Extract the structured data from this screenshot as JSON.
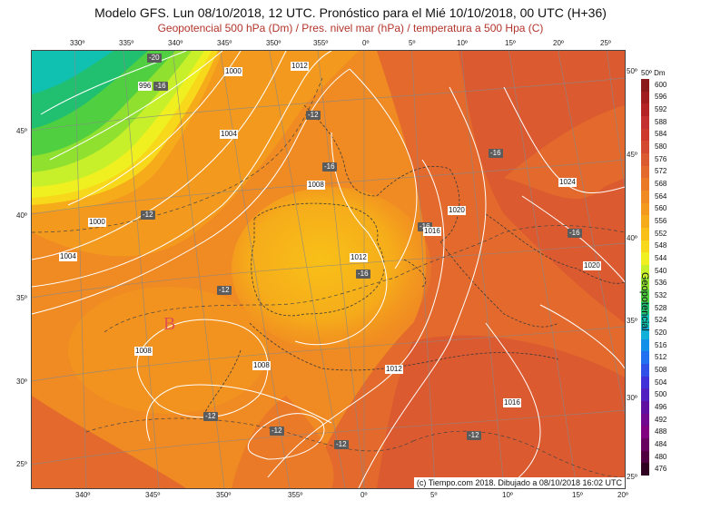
{
  "header": {
    "title": "Modelo GFS. Lun 08/10/2018, 12 UTC. Pronóstico para el Mié 10/10/2018, 00 UTC (H+36)",
    "subtitle": "Geopotencial 500 hPa (Dm) / Pres. nivel mar (hPa) / temperatura a 500 Hpa (C)"
  },
  "axes": {
    "lon_top": [
      "330º",
      "335º",
      "340º",
      "345º",
      "350º",
      "355º",
      "0º",
      "5º",
      "10º",
      "15º",
      "20º",
      "25º"
    ],
    "lon_bottom": [
      "340º",
      "345º",
      "350º",
      "355º",
      "0º",
      "5º",
      "10º",
      "15º",
      "20º"
    ],
    "lat_left": [
      "45º",
      "40º",
      "35º",
      "30º",
      "25º"
    ],
    "lat_right": [
      "50º",
      "45º",
      "40º",
      "35º",
      "30º",
      "25º"
    ]
  },
  "temperature_labels": [
    "-20",
    "-16",
    "-12",
    "-12",
    "-16",
    "-16",
    "-16",
    "-16",
    "-16",
    "-12",
    "-12",
    "-12",
    "-12",
    "-12"
  ],
  "pressure_labels": [
    "1000",
    "996",
    "1012",
    "1004",
    "1008",
    "1000",
    "1004",
    "1020",
    "1016",
    "1024",
    "1020",
    "1012",
    "1008",
    "1008",
    "1012",
    "1016"
  ],
  "low_marker": "B",
  "credit": "(c) Tiempo.com 2018. Dibujado a 08/10/2018 16:02 UTC",
  "colorbar": {
    "unit": "Dm",
    "title": "Geopotencial",
    "levels": [
      "600",
      "596",
      "592",
      "588",
      "584",
      "580",
      "576",
      "572",
      "568",
      "564",
      "560",
      "556",
      "552",
      "548",
      "544",
      "540",
      "536",
      "532",
      "528",
      "524",
      "520",
      "516",
      "512",
      "508",
      "504",
      "500",
      "496",
      "492",
      "488",
      "484",
      "480",
      "476"
    ],
    "colors": [
      "#8b1a1a",
      "#a01e1e",
      "#b52424",
      "#c43030",
      "#cd3a2c",
      "#d44a30",
      "#dc5a30",
      "#e36a2c",
      "#ea7a28",
      "#f08a22",
      "#f39a1e",
      "#f6ac1a",
      "#f8c018",
      "#f8d81a",
      "#f0f020",
      "#c8f02a",
      "#90e030",
      "#50d040",
      "#20c070",
      "#10c0b0",
      "#10b0d8",
      "#1090e8",
      "#2070f0",
      "#3050e8",
      "#4030d8",
      "#5020c0",
      "#6010a0",
      "#700890",
      "#800080",
      "#680060",
      "#500040",
      "#300020"
    ]
  }
}
